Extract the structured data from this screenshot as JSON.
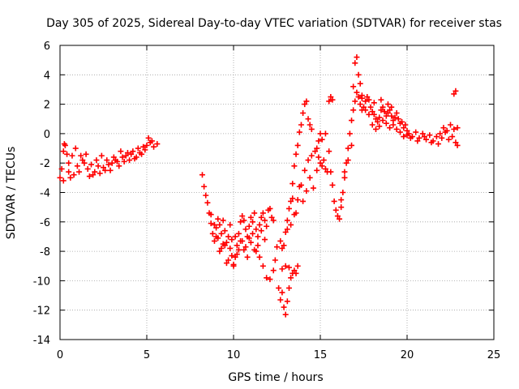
{
  "chart_data": {
    "type": "scatter",
    "title": "Day 305 of 2025, Sidereal Day-to-day VTEC variation (SDTVAR) for receiver stas",
    "xlabel": "GPS time / hours",
    "ylabel": "SDTVAR / TECUs",
    "xlim": [
      0,
      25
    ],
    "ylim": [
      -14,
      6
    ],
    "xticks": [
      0,
      5,
      10,
      15,
      20,
      25
    ],
    "yticks": [
      -14,
      -12,
      -10,
      -8,
      -6,
      -4,
      -2,
      0,
      2,
      4,
      6
    ],
    "grid": true,
    "marker": "+",
    "series": [
      {
        "name": "SDTVAR",
        "color": "#ff0000",
        "points": [
          [
            0.0,
            -3.0
          ],
          [
            0.1,
            -2.4
          ],
          [
            0.2,
            -1.2
          ],
          [
            0.25,
            -0.7
          ],
          [
            0.3,
            -0.8
          ],
          [
            0.4,
            -1.4
          ],
          [
            0.5,
            -2.6
          ],
          [
            0.6,
            -3.0
          ],
          [
            0.8,
            -2.8
          ],
          [
            1.0,
            -2.2
          ],
          [
            1.2,
            -1.5
          ],
          [
            1.4,
            -2.0
          ],
          [
            1.6,
            -2.4
          ],
          [
            1.8,
            -2.1
          ],
          [
            2.0,
            -2.6
          ],
          [
            2.2,
            -2.2
          ],
          [
            2.4,
            -1.5
          ],
          [
            2.6,
            -2.5
          ],
          [
            2.8,
            -2.1
          ],
          [
            3.0,
            -2.0
          ],
          [
            3.2,
            -1.8
          ],
          [
            3.4,
            -2.2
          ],
          [
            3.6,
            -1.6
          ],
          [
            3.8,
            -1.5
          ],
          [
            4.0,
            -1.8
          ],
          [
            4.2,
            -1.2
          ],
          [
            4.4,
            -1.6
          ],
          [
            4.6,
            -1.3
          ],
          [
            4.8,
            -0.9
          ],
          [
            5.0,
            -0.8
          ],
          [
            5.2,
            -0.6
          ],
          [
            5.4,
            -0.9
          ],
          [
            5.6,
            -0.7
          ],
          [
            0.2,
            -3.2
          ],
          [
            0.5,
            -2.0
          ],
          [
            0.7,
            -1.5
          ],
          [
            0.9,
            -1.0
          ],
          [
            1.1,
            -2.6
          ],
          [
            1.3,
            -1.8
          ],
          [
            1.5,
            -1.4
          ],
          [
            1.7,
            -2.9
          ],
          [
            1.9,
            -2.8
          ],
          [
            2.1,
            -1.8
          ],
          [
            2.3,
            -2.7
          ],
          [
            2.5,
            -2.3
          ],
          [
            2.7,
            -1.8
          ],
          [
            2.9,
            -2.5
          ],
          [
            3.1,
            -1.6
          ],
          [
            3.3,
            -1.9
          ],
          [
            3.5,
            -1.2
          ],
          [
            3.7,
            -1.9
          ],
          [
            3.9,
            -1.3
          ],
          [
            4.1,
            -1.4
          ],
          [
            4.3,
            -1.7
          ],
          [
            4.5,
            -1.0
          ],
          [
            4.7,
            -1.4
          ],
          [
            4.9,
            -1.1
          ],
          [
            5.1,
            -0.3
          ],
          [
            5.3,
            -0.5
          ],
          [
            8.2,
            -2.8
          ],
          [
            8.3,
            -3.6
          ],
          [
            8.4,
            -4.2
          ],
          [
            8.5,
            -4.7
          ],
          [
            8.6,
            -5.4
          ],
          [
            8.7,
            -6.1
          ],
          [
            8.8,
            -6.8
          ],
          [
            8.9,
            -7.3
          ],
          [
            9.0,
            -6.4
          ],
          [
            9.1,
            -7.1
          ],
          [
            9.2,
            -6.2
          ],
          [
            9.3,
            -6.8
          ],
          [
            9.4,
            -5.9
          ],
          [
            9.5,
            -6.6
          ],
          [
            9.6,
            -7.4
          ],
          [
            9.7,
            -7.0
          ],
          [
            9.8,
            -6.2
          ],
          [
            9.9,
            -8.3
          ],
          [
            10.0,
            -9.0
          ],
          [
            10.1,
            -8.4
          ],
          [
            10.2,
            -7.6
          ],
          [
            10.3,
            -6.8
          ],
          [
            10.4,
            -6.0
          ],
          [
            10.5,
            -5.6
          ],
          [
            10.6,
            -5.9
          ],
          [
            10.7,
            -6.5
          ],
          [
            10.8,
            -7.0
          ],
          [
            10.9,
            -6.3
          ],
          [
            11.0,
            -5.7
          ],
          [
            11.1,
            -6.0
          ],
          [
            11.2,
            -5.4
          ],
          [
            11.3,
            -6.5
          ],
          [
            11.4,
            -7.0
          ],
          [
            11.5,
            -6.2
          ],
          [
            11.6,
            -5.7
          ],
          [
            11.7,
            -5.4
          ],
          [
            11.8,
            -5.9
          ],
          [
            11.9,
            -6.3
          ],
          [
            12.0,
            -5.2
          ],
          [
            12.1,
            -5.1
          ],
          [
            12.2,
            -5.7
          ],
          [
            12.3,
            -5.9
          ],
          [
            8.7,
            -5.5
          ],
          [
            8.9,
            -6.2
          ],
          [
            9.1,
            -5.8
          ],
          [
            9.3,
            -7.8
          ],
          [
            9.5,
            -7.6
          ],
          [
            9.7,
            -8.6
          ],
          [
            9.9,
            -7.2
          ],
          [
            10.1,
            -7.0
          ],
          [
            10.3,
            -7.9
          ],
          [
            10.5,
            -7.3
          ],
          [
            10.7,
            -7.7
          ],
          [
            10.9,
            -7.1
          ],
          [
            11.1,
            -6.8
          ],
          [
            11.3,
            -8.0
          ],
          [
            11.5,
            -8.4
          ],
          [
            11.7,
            -9.0
          ],
          [
            11.9,
            -9.8
          ],
          [
            12.1,
            -9.9
          ],
          [
            12.3,
            -9.3
          ],
          [
            12.4,
            -8.6
          ],
          [
            12.5,
            -7.7
          ],
          [
            9.0,
            -7.0
          ],
          [
            9.2,
            -8.0
          ],
          [
            9.4,
            -7.5
          ],
          [
            9.6,
            -8.8
          ],
          [
            9.8,
            -7.8
          ],
          [
            10.0,
            -8.9
          ],
          [
            10.2,
            -8.2
          ],
          [
            10.4,
            -7.3
          ],
          [
            10.6,
            -7.9
          ],
          [
            10.8,
            -8.4
          ],
          [
            11.0,
            -7.4
          ],
          [
            11.2,
            -7.9
          ],
          [
            11.4,
            -7.6
          ],
          [
            11.6,
            -6.6
          ],
          [
            11.8,
            -7.2
          ],
          [
            12.7,
            -7.3
          ],
          [
            12.8,
            -7.8
          ],
          [
            12.9,
            -7.6
          ],
          [
            13.0,
            -6.7
          ],
          [
            13.1,
            -5.9
          ],
          [
            13.2,
            -5.1
          ],
          [
            13.3,
            -4.6
          ],
          [
            13.4,
            -3.4
          ],
          [
            13.5,
            -2.2
          ],
          [
            13.6,
            -1.4
          ],
          [
            13.7,
            -0.8
          ],
          [
            13.8,
            0.1
          ],
          [
            13.9,
            0.6
          ],
          [
            14.0,
            1.4
          ],
          [
            14.1,
            2.0
          ],
          [
            14.2,
            2.2
          ],
          [
            14.3,
            1.0
          ],
          [
            14.4,
            0.6
          ],
          [
            14.5,
            0.3
          ],
          [
            12.6,
            -10.5
          ],
          [
            12.7,
            -11.3
          ],
          [
            12.8,
            -10.8
          ],
          [
            12.9,
            -11.8
          ],
          [
            13.0,
            -12.3
          ],
          [
            13.1,
            -11.4
          ],
          [
            13.2,
            -10.5
          ],
          [
            13.3,
            -9.8
          ],
          [
            13.4,
            -9.5
          ],
          [
            13.5,
            -9.3
          ],
          [
            13.6,
            -9.5
          ],
          [
            13.7,
            -9.0
          ],
          [
            12.8,
            -9.2
          ],
          [
            13.0,
            -9.0
          ],
          [
            13.2,
            -9.1
          ],
          [
            13.1,
            -6.5
          ],
          [
            13.3,
            -6.2
          ],
          [
            13.5,
            -5.5
          ],
          [
            13.7,
            -4.5
          ],
          [
            13.9,
            -3.5
          ],
          [
            14.1,
            -2.5
          ],
          [
            14.3,
            -1.8
          ],
          [
            14.5,
            -1.5
          ],
          [
            14.7,
            -1.2
          ],
          [
            14.9,
            -1.6
          ],
          [
            15.1,
            -2.2
          ],
          [
            15.3,
            -2.4
          ],
          [
            13.4,
            -4.4
          ],
          [
            13.6,
            -5.4
          ],
          [
            13.8,
            -3.6
          ],
          [
            14.0,
            -4.6
          ],
          [
            14.2,
            -3.9
          ],
          [
            14.4,
            -3.0
          ],
          [
            14.6,
            -3.7
          ],
          [
            14.8,
            -2.5
          ],
          [
            15.0,
            -2.0
          ],
          [
            15.2,
            -1.8
          ],
          [
            15.4,
            -2.6
          ],
          [
            14.8,
            -1.0
          ],
          [
            14.9,
            -0.5
          ],
          [
            15.0,
            0.0
          ],
          [
            15.1,
            -0.4
          ],
          [
            15.3,
            0.0
          ],
          [
            15.5,
            -1.2
          ],
          [
            15.6,
            -2.6
          ],
          [
            15.7,
            -3.5
          ],
          [
            15.8,
            -4.6
          ],
          [
            15.9,
            -5.2
          ],
          [
            16.0,
            -5.6
          ],
          [
            16.1,
            -5.8
          ],
          [
            16.2,
            -5.0
          ],
          [
            16.3,
            -4.0
          ],
          [
            16.4,
            -3.0
          ],
          [
            16.5,
            -2.0
          ],
          [
            16.6,
            -1.0
          ],
          [
            16.7,
            0.0
          ],
          [
            16.8,
            0.9
          ],
          [
            16.9,
            1.6
          ],
          [
            17.0,
            2.2
          ],
          [
            17.1,
            2.8
          ],
          [
            17.2,
            2.5
          ],
          [
            17.3,
            2.0
          ],
          [
            17.4,
            1.6
          ],
          [
            17.5,
            1.8
          ],
          [
            17.6,
            2.2
          ],
          [
            17.7,
            2.5
          ],
          [
            17.8,
            2.3
          ],
          [
            17.9,
            1.8
          ],
          [
            18.0,
            1.5
          ],
          [
            18.1,
            1.3
          ],
          [
            18.2,
            1.0
          ],
          [
            18.3,
            0.8
          ],
          [
            18.4,
            1.1
          ],
          [
            18.5,
            1.6
          ],
          [
            18.6,
            1.8
          ],
          [
            18.7,
            1.5
          ],
          [
            18.8,
            1.2
          ],
          [
            18.9,
            1.4
          ],
          [
            19.0,
            1.6
          ],
          [
            19.1,
            1.2
          ],
          [
            19.2,
            0.9
          ],
          [
            19.3,
            1.1
          ],
          [
            19.4,
            1.4
          ],
          [
            19.5,
            1.0
          ],
          [
            19.6,
            0.7
          ],
          [
            19.7,
            0.8
          ],
          [
            19.8,
            0.4
          ],
          [
            19.9,
            0.6
          ],
          [
            20.0,
            0.2
          ],
          [
            16.2,
            -4.5
          ],
          [
            16.4,
            -2.6
          ],
          [
            16.6,
            -1.8
          ],
          [
            16.8,
            -0.8
          ],
          [
            16.9,
            3.2
          ],
          [
            17.0,
            4.8
          ],
          [
            17.1,
            5.2
          ],
          [
            17.2,
            4.0
          ],
          [
            17.3,
            3.4
          ],
          [
            17.4,
            2.6
          ],
          [
            17.6,
            1.6
          ],
          [
            17.8,
            1.3
          ],
          [
            18.0,
            0.6
          ],
          [
            18.2,
            0.3
          ],
          [
            18.4,
            0.5
          ],
          [
            18.6,
            0.9
          ],
          [
            18.8,
            0.7
          ],
          [
            19.0,
            0.4
          ],
          [
            19.2,
            0.6
          ],
          [
            19.4,
            0.3
          ],
          [
            19.6,
            0.1
          ],
          [
            19.8,
            -0.2
          ],
          [
            20.0,
            -0.1
          ],
          [
            15.5,
            2.2
          ],
          [
            15.6,
            2.5
          ],
          [
            15.7,
            2.3
          ],
          [
            17.4,
            2.4
          ],
          [
            18.1,
            2.1
          ],
          [
            18.5,
            2.3
          ],
          [
            18.9,
            2.0
          ],
          [
            19.1,
            1.8
          ],
          [
            20.1,
            0.0
          ],
          [
            20.3,
            -0.2
          ],
          [
            20.5,
            0.1
          ],
          [
            20.7,
            -0.3
          ],
          [
            20.9,
            0.0
          ],
          [
            21.1,
            -0.4
          ],
          [
            21.3,
            -0.1
          ],
          [
            21.5,
            -0.5
          ],
          [
            21.7,
            -0.2
          ],
          [
            21.9,
            0.0
          ],
          [
            22.1,
            0.4
          ],
          [
            22.3,
            0.2
          ],
          [
            22.5,
            0.6
          ],
          [
            22.7,
            0.3
          ],
          [
            22.9,
            0.4
          ],
          [
            20.2,
            -0.3
          ],
          [
            20.6,
            -0.5
          ],
          [
            21.0,
            -0.2
          ],
          [
            21.4,
            -0.6
          ],
          [
            21.8,
            -0.7
          ],
          [
            22.0,
            -0.3
          ],
          [
            22.2,
            0.1
          ],
          [
            22.4,
            -0.4
          ],
          [
            22.6,
            -0.2
          ],
          [
            22.8,
            -0.6
          ],
          [
            22.9,
            -0.8
          ],
          [
            22.7,
            2.7
          ],
          [
            22.8,
            2.9
          ]
        ]
      }
    ]
  }
}
